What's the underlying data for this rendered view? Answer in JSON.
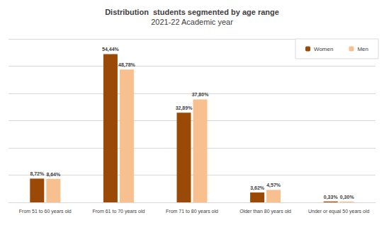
{
  "chart_data": {
    "type": "bar",
    "title": "Distribution  students segmented by age range",
    "subtitle": "2021-22 Academic year",
    "categories": [
      "From 51 to 60 years old",
      "From 61 to 70 years old",
      "From 71 to 80 years old",
      "Older than 80 years old",
      "Under or equal 50 years old"
    ],
    "series": [
      {
        "name": "Women",
        "color": "#9a4a06",
        "values": [
          8.72,
          54.44,
          32.89,
          3.62,
          0.33
        ],
        "value_labels": [
          "8,72%",
          "54,44%",
          "32,89%",
          "3,62%",
          "0,33%"
        ]
      },
      {
        "name": "Men",
        "color": "#f9c08f",
        "values": [
          8.64,
          48.78,
          37.8,
          4.57,
          0.3
        ],
        "value_labels": [
          "8,64%",
          "48,78%",
          "37,80%",
          "4,57%",
          "0,30%"
        ]
      }
    ],
    "ylim": [
      0,
      60
    ],
    "yticks": [
      0,
      10,
      20,
      30,
      40,
      50,
      60
    ],
    "grid": true,
    "legend": "top-right",
    "data_labels": true,
    "tick_labels": "x"
  }
}
